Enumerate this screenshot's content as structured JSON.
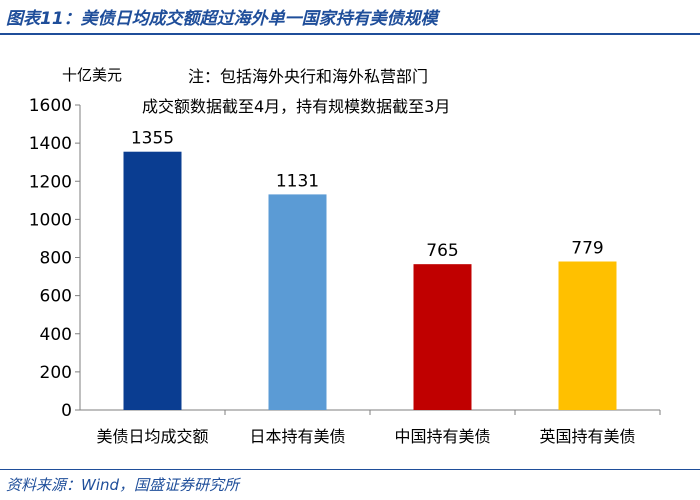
{
  "figure": {
    "title": "图表11：美债日均成交额超过海外单一国家持有美债规模",
    "source": "资料来源：Wind，国盛证券研究所",
    "title_color": "#1f4e9a"
  },
  "chart_data": {
    "type": "bar",
    "title": "",
    "xlabel": "",
    "ylabel": "十亿美元",
    "notes": [
      "注：包括海外央行和海外私营部门",
      "成交额数据截至4月，持有规模数据截至3月"
    ],
    "categories": [
      "美债日均成交额",
      "日本持有美债",
      "中国持有美债",
      "英国持有美债"
    ],
    "values": [
      1355,
      1131,
      765,
      779
    ],
    "colors": [
      "#0a3d91",
      "#5b9bd5",
      "#c00000",
      "#ffc000"
    ],
    "ylim": [
      0,
      1600
    ],
    "yticks": [
      0,
      200,
      400,
      600,
      800,
      1000,
      1200,
      1400,
      1600
    ],
    "grid": false,
    "legend": "none"
  }
}
